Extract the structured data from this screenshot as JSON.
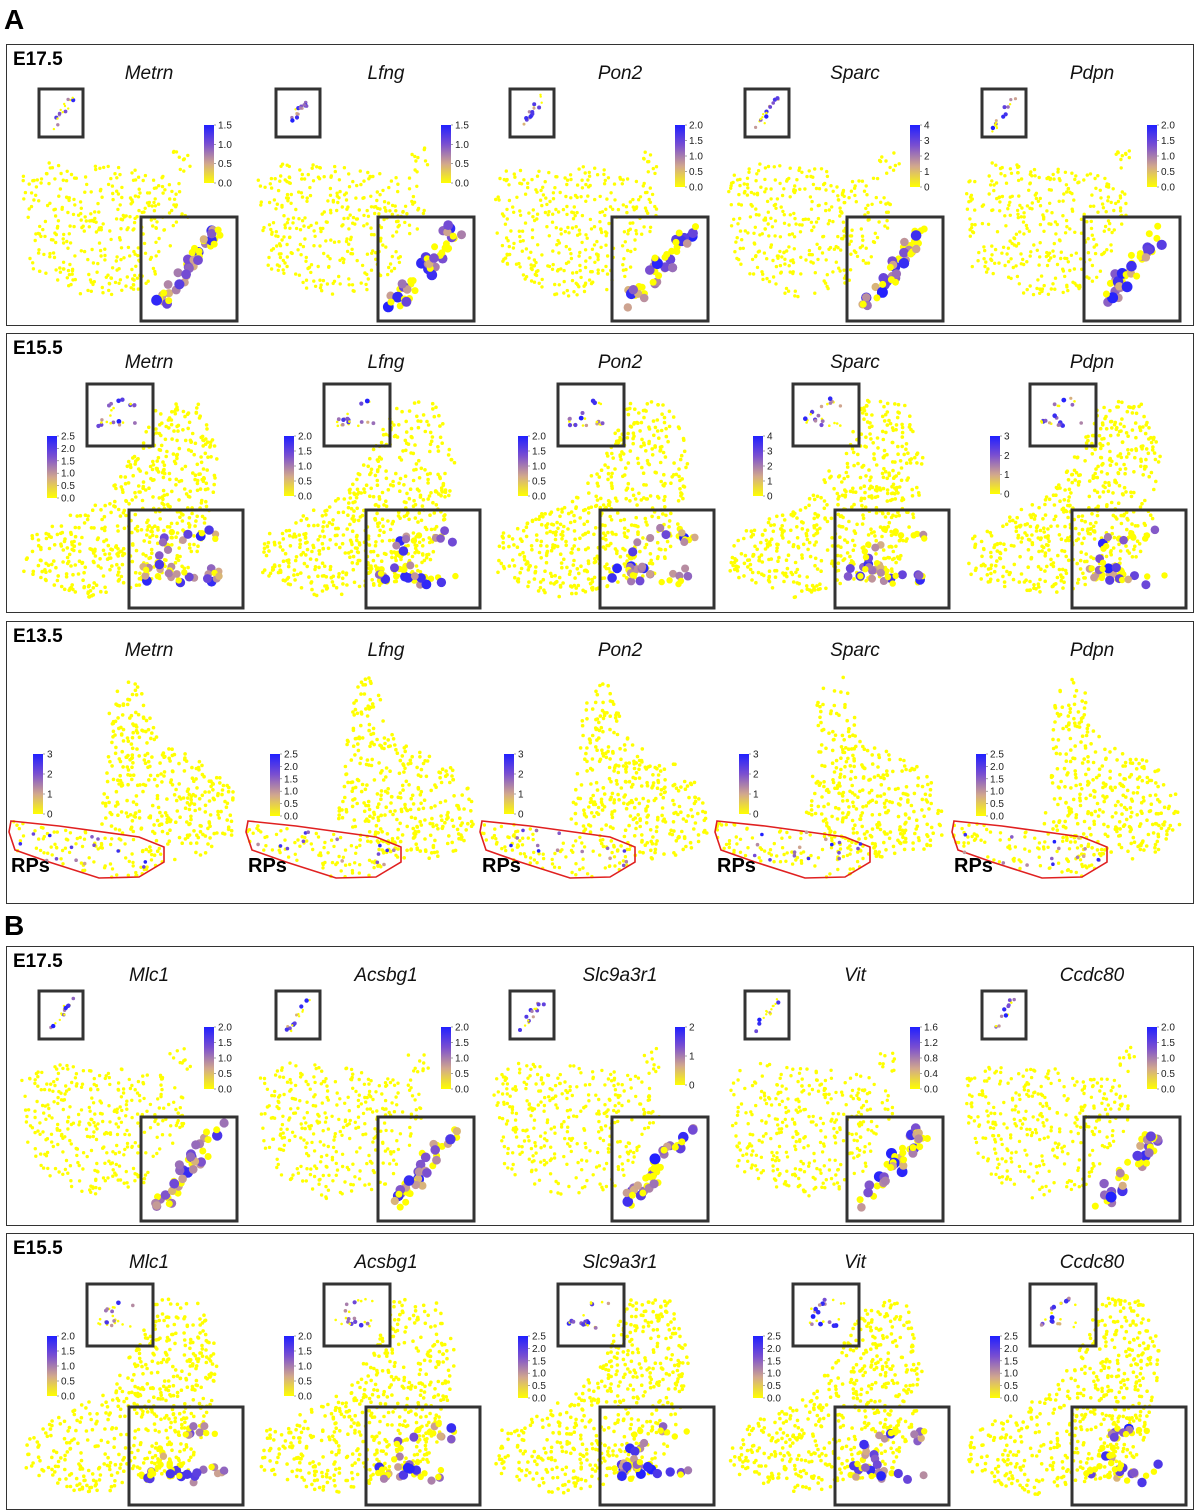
{
  "figure": {
    "sections": [
      {
        "letter": "A",
        "rows": [
          {
            "stage": "E17.5",
            "layout": "e17",
            "genes": [
              {
                "name": "Metrn",
                "ticks": [
                  "1.5",
                  "1.0",
                  "0.5",
                  "0.0"
                ]
              },
              {
                "name": "Lfng",
                "ticks": [
                  "1.5",
                  "1.0",
                  "0.5",
                  "0.0"
                ]
              },
              {
                "name": "Pon2",
                "ticks": [
                  "2.0",
                  "1.5",
                  "1.0",
                  "0.5",
                  "0.0"
                ]
              },
              {
                "name": "Sparc",
                "ticks": [
                  "4",
                  "3",
                  "2",
                  "1",
                  "0"
                ]
              },
              {
                "name": "Pdpn",
                "ticks": [
                  "2.0",
                  "1.5",
                  "1.0",
                  "0.5",
                  "0.0"
                ]
              }
            ]
          },
          {
            "stage": "E15.5",
            "layout": "e15",
            "genes": [
              {
                "name": "Metrn",
                "ticks": [
                  "2.5",
                  "2.0",
                  "1.5",
                  "1.0",
                  "0.5",
                  "0.0"
                ]
              },
              {
                "name": "Lfng",
                "ticks": [
                  "2.0",
                  "1.5",
                  "1.0",
                  "0.5",
                  "0.0"
                ]
              },
              {
                "name": "Pon2",
                "ticks": [
                  "2.0",
                  "1.5",
                  "1.0",
                  "0.5",
                  "0.0"
                ]
              },
              {
                "name": "Sparc",
                "ticks": [
                  "4",
                  "3",
                  "2",
                  "1",
                  "0"
                ]
              },
              {
                "name": "Pdpn",
                "ticks": [
                  "3",
                  "2",
                  "1",
                  "0"
                ]
              }
            ]
          },
          {
            "stage": "E13.5",
            "layout": "e13",
            "region_label": "RPs",
            "genes": [
              {
                "name": "Metrn",
                "ticks": [
                  "3",
                  "2",
                  "1",
                  "0"
                ]
              },
              {
                "name": "Lfng",
                "ticks": [
                  "2.5",
                  "2.0",
                  "1.5",
                  "1.0",
                  "0.5",
                  "0.0"
                ]
              },
              {
                "name": "Pon2",
                "ticks": [
                  "3",
                  "2",
                  "1",
                  "0"
                ]
              },
              {
                "name": "Sparc",
                "ticks": [
                  "3",
                  "2",
                  "1",
                  "0"
                ]
              },
              {
                "name": "Pdpn",
                "ticks": [
                  "2.5",
                  "2.0",
                  "1.5",
                  "1.0",
                  "0.5",
                  "0.0"
                ]
              }
            ]
          }
        ]
      },
      {
        "letter": "B",
        "rows": [
          {
            "stage": "E17.5",
            "layout": "e17",
            "genes": [
              {
                "name": "Mlc1",
                "ticks": [
                  "2.0",
                  "1.5",
                  "1.0",
                  "0.5",
                  "0.0"
                ]
              },
              {
                "name": "Acsbg1",
                "ticks": [
                  "2.0",
                  "1.5",
                  "1.0",
                  "0.5",
                  "0.0"
                ]
              },
              {
                "name": "Slc9a3r1",
                "ticks": [
                  "2",
                  "1",
                  "0"
                ]
              },
              {
                "name": "Vit",
                "ticks": [
                  "1.6",
                  "1.2",
                  "0.8",
                  "0.4",
                  "0.0"
                ]
              },
              {
                "name": "Ccdc80",
                "ticks": [
                  "2.0",
                  "1.5",
                  "1.0",
                  "0.5",
                  "0.0"
                ]
              }
            ]
          },
          {
            "stage": "E15.5",
            "layout": "e15",
            "genes": [
              {
                "name": "Mlc1",
                "ticks": [
                  "2.0",
                  "1.5",
                  "1.0",
                  "0.5",
                  "0.0"
                ]
              },
              {
                "name": "Acsbg1",
                "ticks": [
                  "2.0",
                  "1.5",
                  "1.0",
                  "0.5",
                  "0.0"
                ]
              },
              {
                "name": "Slc9a3r1",
                "ticks": [
                  "2.5",
                  "2.0",
                  "1.5",
                  "1.0",
                  "0.5",
                  "0.0"
                ]
              },
              {
                "name": "Vit",
                "ticks": [
                  "2.5",
                  "2.0",
                  "1.5",
                  "1.0",
                  "0.5",
                  "0.0"
                ]
              },
              {
                "name": "Ccdc80",
                "ticks": [
                  "2.5",
                  "2.0",
                  "1.5",
                  "1.0",
                  "0.5",
                  "0.0"
                ]
              }
            ]
          }
        ]
      }
    ]
  },
  "chart_data": {
    "type": "scatter",
    "colorscale": [
      "#ffff00",
      "#d2a88c",
      "#7a4fd0",
      "#2020ff"
    ],
    "background_point_color": "#ffff00",
    "region_outline_color": "#e02020"
  }
}
